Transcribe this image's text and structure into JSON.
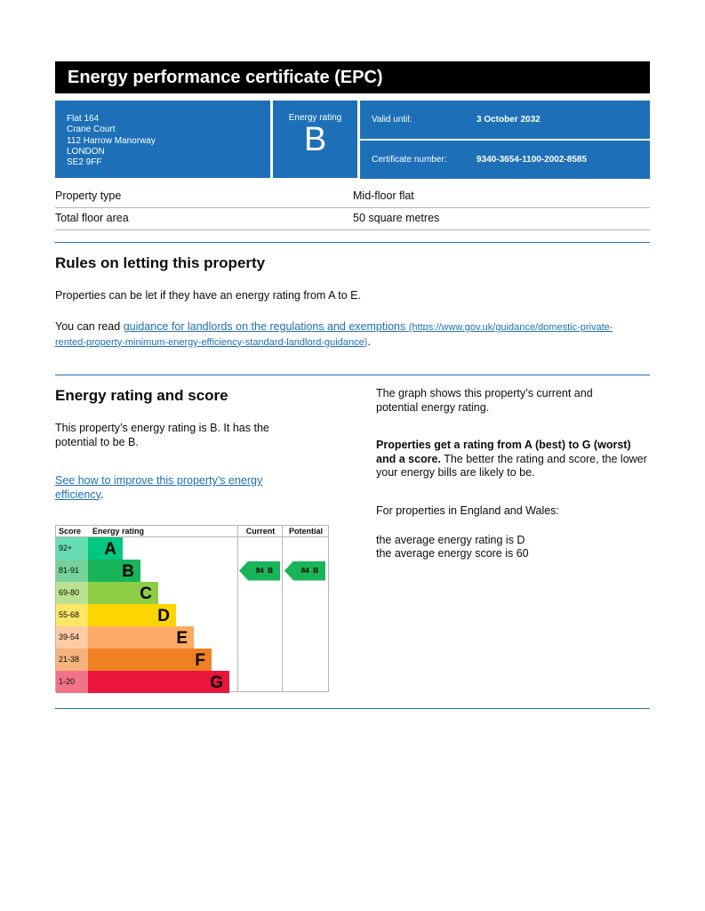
{
  "header": {
    "title": "Energy performance certificate (EPC)"
  },
  "address": [
    "Flat 164",
    "Crane Court",
    "112 Harrow Manorway",
    "LONDON",
    "SE2 9FF"
  ],
  "rating_box": {
    "label": "Energy rating",
    "rating": "B"
  },
  "validity": {
    "label": "Valid until:",
    "value": "3 October 2032"
  },
  "certificate": {
    "label": "Certificate number:",
    "value": "9340-3654-1100-2002-8585"
  },
  "property": [
    {
      "label": "Property type",
      "value": "Mid-floor flat"
    },
    {
      "label": "Total floor area",
      "value": "50 square metres"
    }
  ],
  "letting": {
    "heading": "Rules on letting this property",
    "paragraph": "Properties can be let if they have an energy rating from A to E.",
    "guidance_prefix": "You can read ",
    "guidance_link": "guidance for landlords on the regulations and exemptions",
    "guidance_url": "(https://www.gov.uk/guidance/domestic-private-rented-property-minimum-energy-efficiency-standard-landlord-guidance)",
    "guidance_suffix": "."
  },
  "energy": {
    "heading": "Energy rating and score",
    "paragraph": "This property’s energy rating is B. It has the potential to be B.",
    "improve_link": "See how to improve this property’s energy efficiency",
    "improve_suffix": ".",
    "graph_note": "The graph shows this property’s current and potential energy rating.",
    "scale_bold": "Properties get a rating from A (best) to G (worst) and a score.",
    "scale_text": " The better the rating and score, the lower your energy bills are likely to be.",
    "average_intro": "For properties in England and Wales:",
    "average_rating": "the average energy rating is D",
    "average_score": "the average energy score is 60"
  },
  "chart": {
    "headers": {
      "score": "Score",
      "rating": "Energy rating",
      "current": "Current",
      "potential": "Potential"
    },
    "bands": [
      {
        "score": "92+",
        "letter": "A",
        "color": "#00c781"
      },
      {
        "score": "81-91",
        "letter": "B",
        "color": "#19b459"
      },
      {
        "score": "69-80",
        "letter": "C",
        "color": "#8dce46"
      },
      {
        "score": "55-68",
        "letter": "D",
        "color": "#ffd500"
      },
      {
        "score": "39-54",
        "letter": "E",
        "color": "#fcaa65"
      },
      {
        "score": "21-38",
        "letter": "F",
        "color": "#ef8023"
      },
      {
        "score": "1-20",
        "letter": "G",
        "color": "#e9153b"
      }
    ],
    "current": {
      "score": 84,
      "rating": "B"
    },
    "potential": {
      "score": 84,
      "rating": "B"
    }
  }
}
